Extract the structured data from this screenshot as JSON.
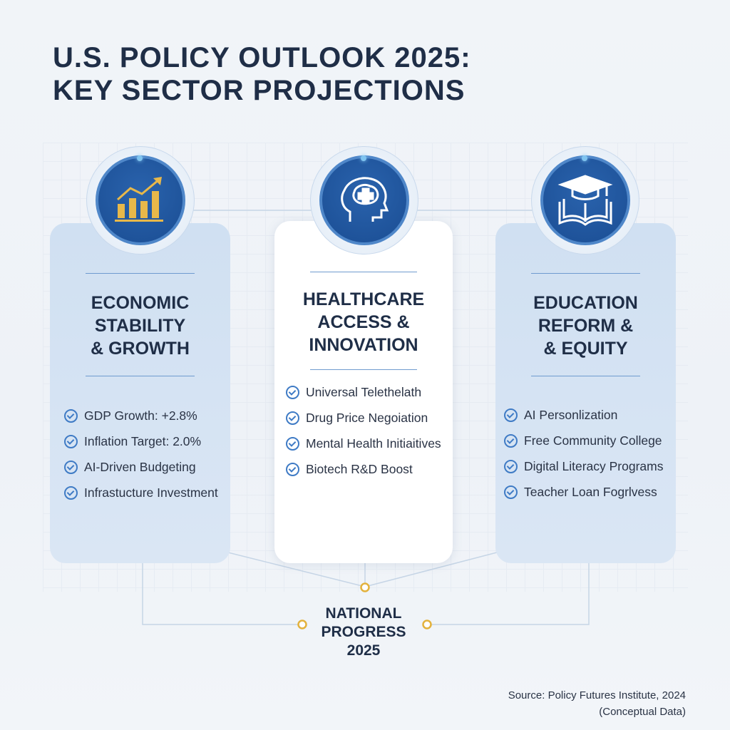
{
  "title": {
    "line1": "U.S. POLICY OUTLOOK 2025:",
    "line2": "KEY SECTOR PROJECTIONS"
  },
  "cards": [
    {
      "icon": "bar-chart-growth-icon",
      "heading": [
        "ECONOMIC",
        "STABILITY",
        "& GROWTH"
      ],
      "items": [
        "GDP Growth: +2.8%",
        "Inflation Target: 2.0%",
        "AI-Driven Budgeting",
        "Infrastucture Investment"
      ]
    },
    {
      "icon": "brain-medical-cross-icon",
      "heading": [
        "HEALTHCARE",
        "ACCESS &",
        "INNOVATION"
      ],
      "items": [
        "Universal Telethelath",
        "Drug Price Negoiation",
        "Mental Health Initiaitives",
        "Biotech R&D Boost"
      ]
    },
    {
      "icon": "graduation-cap-book-icon",
      "heading": [
        "EDUCATION",
        "REFORM &",
        "& EQUITY"
      ],
      "items": [
        "AI Personlization",
        "Free Community College",
        "Digital Literacy Programs",
        "Teacher Loan Fogrlvess"
      ]
    }
  ],
  "hub": {
    "line1": "NATIONAL",
    "line2": "PROGRESS",
    "line3": "2025"
  },
  "source": {
    "line1": "Source: Policy Futures Institute, 2024",
    "line2": "(Conceptual Data)"
  },
  "colors": {
    "title": "#1f2e47",
    "accent": "#1a4d93",
    "gold": "#e3b23c",
    "card": "#d5e3f3"
  }
}
